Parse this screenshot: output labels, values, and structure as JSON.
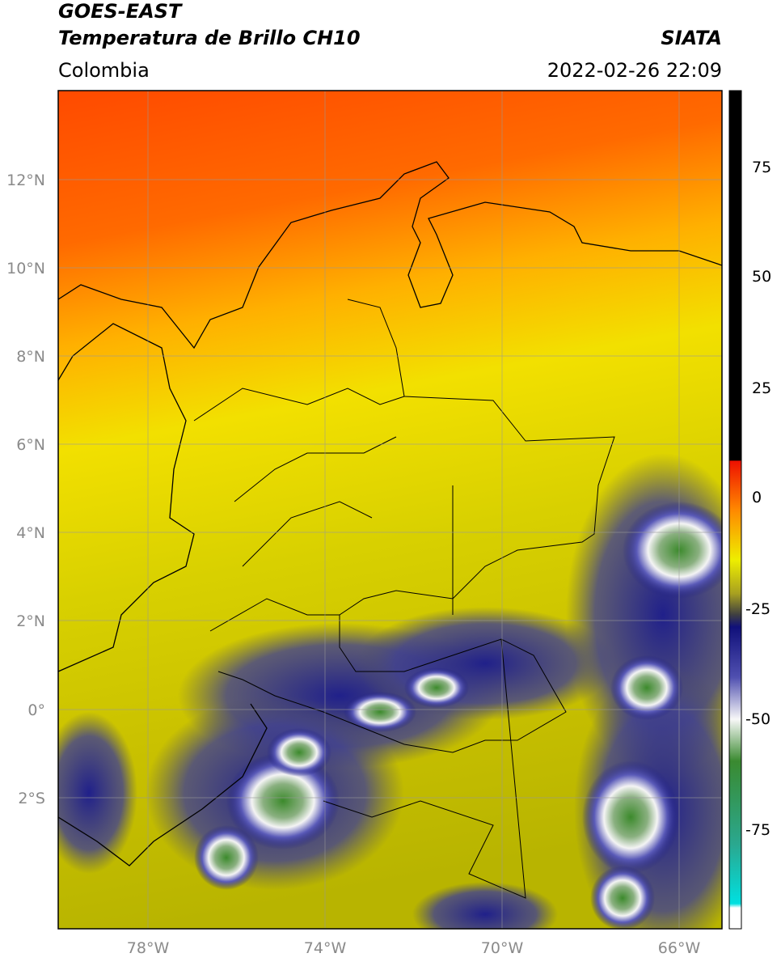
{
  "header": {
    "title": "GOES-EAST",
    "subtitle": "Temperatura de Brillo CH10",
    "region": "Colombia",
    "source": "SIATA",
    "timestamp": "2022-02-26 22:09"
  },
  "map": {
    "lat_labels": [
      "12°N",
      "10°N",
      "8°N",
      "6°N",
      "4°N",
      "2°N",
      "0°",
      "2°S"
    ],
    "lon_labels": [
      "78°W",
      "74°W",
      "70°W",
      "66°W"
    ]
  },
  "colorbar": {
    "labels": [
      "75",
      "50",
      "25",
      "0",
      "-25",
      "-50",
      "-75"
    ]
  }
}
